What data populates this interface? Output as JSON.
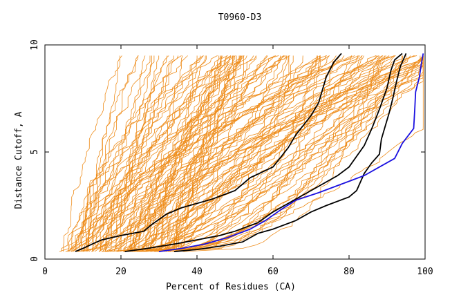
{
  "chart_data": {
    "type": "line",
    "title": "T0960-D3",
    "xlabel": "Percent of Residues (CA)",
    "ylabel": "Distance Cutoff, A",
    "xlim": [
      0,
      100
    ],
    "ylim": [
      0,
      10
    ],
    "x_ticks": [
      0,
      20,
      40,
      60,
      80,
      100
    ],
    "y_ticks": [
      0,
      5,
      10
    ],
    "grid": false,
    "legend": "none",
    "colors": {
      "background_models": "#ee8c1a",
      "highlight_models": "#000000",
      "selected_model": "#1a10e0",
      "axes": "#000000"
    },
    "background_model_count": 130,
    "series": [
      {
        "color": "#000000",
        "points": [
          [
            8,
            0.35
          ],
          [
            10,
            0.5
          ],
          [
            13,
            0.75
          ],
          [
            15,
            0.9
          ],
          [
            20,
            1.1
          ],
          [
            26,
            1.3
          ],
          [
            28,
            1.6
          ],
          [
            32,
            2.1
          ],
          [
            36,
            2.4
          ],
          [
            44,
            2.8
          ],
          [
            50,
            3.2
          ],
          [
            54,
            3.8
          ],
          [
            60,
            4.3
          ],
          [
            64,
            5.2
          ],
          [
            66,
            5.8
          ],
          [
            70,
            6.7
          ],
          [
            72,
            7.3
          ],
          [
            74,
            8.5
          ],
          [
            76,
            9.2
          ],
          [
            78,
            9.6
          ]
        ]
      },
      {
        "color": "#000000",
        "points": [
          [
            21,
            0.35
          ],
          [
            27,
            0.5
          ],
          [
            34,
            0.7
          ],
          [
            40,
            0.9
          ],
          [
            46,
            1.1
          ],
          [
            50,
            1.3
          ],
          [
            56,
            1.7
          ],
          [
            60,
            2.2
          ],
          [
            64,
            2.6
          ],
          [
            68,
            3.0
          ],
          [
            72,
            3.4
          ],
          [
            77,
            3.9
          ],
          [
            80,
            4.3
          ],
          [
            84,
            5.3
          ],
          [
            86,
            6.1
          ],
          [
            88,
            7.0
          ],
          [
            90,
            8.0
          ],
          [
            91,
            8.8
          ],
          [
            92,
            9.3
          ],
          [
            94,
            9.6
          ]
        ]
      },
      {
        "color": "#000000",
        "points": [
          [
            34,
            0.35
          ],
          [
            40,
            0.45
          ],
          [
            46,
            0.6
          ],
          [
            52,
            0.8
          ],
          [
            54,
            1.0
          ],
          [
            56,
            1.2
          ],
          [
            60,
            1.4
          ],
          [
            66,
            1.8
          ],
          [
            70,
            2.2
          ],
          [
            74,
            2.5
          ],
          [
            80,
            2.9
          ],
          [
            82,
            3.2
          ],
          [
            84,
            4.0
          ],
          [
            86,
            4.5
          ],
          [
            88,
            4.9
          ],
          [
            88.5,
            5.6
          ],
          [
            89.5,
            6.2
          ],
          [
            90.5,
            6.8
          ],
          [
            91.5,
            7.5
          ],
          [
            92.5,
            8.3
          ],
          [
            93.5,
            9.0
          ],
          [
            95,
            9.6
          ]
        ]
      },
      {
        "color": "#1a10e0",
        "points": [
          [
            30,
            0.35
          ],
          [
            36,
            0.5
          ],
          [
            42,
            0.7
          ],
          [
            48,
            1.0
          ],
          [
            54,
            1.4
          ],
          [
            58,
            1.8
          ],
          [
            62,
            2.3
          ],
          [
            66,
            2.75
          ],
          [
            72,
            3.1
          ],
          [
            78,
            3.5
          ],
          [
            84,
            3.9
          ],
          [
            88,
            4.3
          ],
          [
            92,
            4.7
          ],
          [
            94,
            5.4
          ],
          [
            97,
            6.1
          ],
          [
            97.3,
            7.0
          ],
          [
            97.5,
            7.8
          ],
          [
            98.5,
            8.5
          ],
          [
            99,
            9.1
          ],
          [
            99.5,
            9.6
          ]
        ]
      }
    ]
  }
}
